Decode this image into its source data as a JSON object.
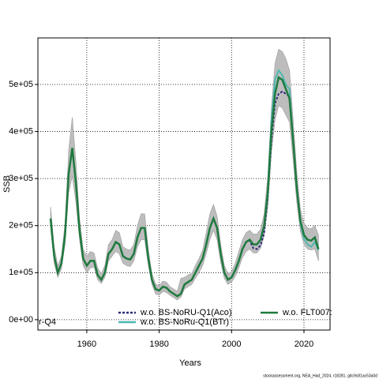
{
  "chart_data": {
    "type": "line",
    "xlabel": "Years",
    "ylabel": "SSB",
    "footer": "stockassessment.org, NEA_Had_2024, r18281, gitc9c81ac53a0d",
    "legend_extra": "r-Q4",
    "legend": "bottom",
    "grid": true,
    "xlim": [
      1946.5,
      2027.2
    ],
    "xticks": [
      1960,
      1980,
      2000,
      2020
    ],
    "ylim": [
      -22000,
      599000
    ],
    "yticks": [
      {
        "value": 0,
        "label": "0e+00"
      },
      {
        "value": 100000,
        "label": "1e+05"
      },
      {
        "value": 200000,
        "label": "2e+05"
      },
      {
        "value": 300000,
        "label": "3e+05"
      },
      {
        "value": 400000,
        "label": "4e+05"
      },
      {
        "value": 500000,
        "label": "5e+05"
      }
    ],
    "x": [
      1950,
      1951,
      1952,
      1953,
      1954,
      1955,
      1956,
      1957,
      1958,
      1959,
      1960,
      1961,
      1962,
      1963,
      1964,
      1965,
      1966,
      1967,
      1968,
      1969,
      1970,
      1971,
      1972,
      1973,
      1974,
      1975,
      1976,
      1977,
      1978,
      1979,
      1980,
      1981,
      1982,
      1983,
      1984,
      1985,
      1986,
      1987,
      1988,
      1989,
      1990,
      1991,
      1992,
      1993,
      1994,
      1995,
      1996,
      1997,
      1998,
      1999,
      2000,
      2001,
      2002,
      2003,
      2004,
      2005,
      2006,
      2007,
      2008,
      2009,
      2010,
      2011,
      2012,
      2013,
      2014,
      2015,
      2016,
      2017,
      2018,
      2019,
      2020,
      2021,
      2022,
      2023,
      2024
    ],
    "band": {
      "color": "#bdbdbd",
      "lower": [
        195000,
        120000,
        90000,
        108000,
        160000,
        270000,
        305000,
        250000,
        170000,
        115000,
        100000,
        110000,
        112000,
        85000,
        77000,
        90000,
        125000,
        135000,
        145000,
        140000,
        120000,
        115000,
        113000,
        125000,
        155000,
        170000,
        170000,
        115000,
        75000,
        55000,
        52000,
        60000,
        58000,
        52000,
        47000,
        42000,
        48000,
        65000,
        70000,
        75000,
        88000,
        100000,
        115000,
        140000,
        170000,
        190000,
        170000,
        122000,
        88000,
        75000,
        80000,
        92000,
        110000,
        132000,
        145000,
        150000,
        142000,
        142000,
        152000,
        178000,
        240000,
        355000,
        425000,
        455000,
        450000,
        435000,
        420000,
        340000,
        250000,
        188000,
        160000,
        150000,
        148000,
        150000,
        125000
      ],
      "upper": [
        240000,
        155000,
        115000,
        135000,
        205000,
        360000,
        430000,
        335000,
        215000,
        150000,
        135000,
        145000,
        142000,
        110000,
        98000,
        115000,
        160000,
        170000,
        190000,
        185000,
        155000,
        150000,
        148000,
        160000,
        200000,
        225000,
        225000,
        150000,
        98000,
        76000,
        72000,
        82000,
        80000,
        70000,
        65000,
        60000,
        88000,
        90000,
        95000,
        98000,
        115000,
        130000,
        148000,
        185000,
        225000,
        245000,
        220000,
        160000,
        115000,
        98000,
        102000,
        120000,
        145000,
        170000,
        185000,
        190000,
        182000,
        182000,
        192000,
        225000,
        305000,
        450000,
        545000,
        575000,
        570000,
        555000,
        530000,
        425000,
        315000,
        235000,
        205000,
        195000,
        193000,
        200000,
        180000
      ]
    },
    "series": [
      {
        "name": "w.o. BS-NoRU-Q1(Aco)",
        "color": "#2b2a7a",
        "dash": "3,2",
        "values": [
          215000,
          135000,
          100000,
          120000,
          180000,
          310000,
          365000,
          290000,
          190000,
          130000,
          115000,
          125000,
          125000,
          95000,
          85000,
          100000,
          140000,
          150000,
          165000,
          160000,
          135000,
          130000,
          128000,
          140000,
          175000,
          195000,
          195000,
          130000,
          85000,
          65000,
          62000,
          70000,
          68000,
          60000,
          55000,
          50000,
          55000,
          75000,
          80000,
          85000,
          100000,
          115000,
          130000,
          160000,
          195000,
          215000,
          195000,
          140000,
          100000,
          85000,
          90000,
          105000,
          125000,
          150000,
          165000,
          168000,
          152000,
          150000,
          158000,
          185000,
          260000,
          380000,
          460000,
          480000,
          485000,
          480000,
          475000,
          380000,
          280000,
          210000,
          180000,
          170000,
          168000,
          175000,
          150000
        ]
      },
      {
        "name": "w.o. BS-NoRu-Q1(BTr)",
        "color": "#4fb8b0",
        "dash": "none",
        "values": [
          215000,
          135000,
          100000,
          120000,
          180000,
          310000,
          365000,
          290000,
          190000,
          130000,
          115000,
          125000,
          125000,
          95000,
          85000,
          100000,
          140000,
          150000,
          165000,
          160000,
          135000,
          130000,
          128000,
          140000,
          175000,
          195000,
          195000,
          130000,
          85000,
          65000,
          62000,
          70000,
          68000,
          60000,
          55000,
          50000,
          55000,
          75000,
          80000,
          85000,
          100000,
          115000,
          130000,
          160000,
          195000,
          215000,
          195000,
          140000,
          100000,
          85000,
          90000,
          105000,
          125000,
          150000,
          165000,
          170000,
          160000,
          160000,
          170000,
          200000,
          275000,
          420000,
          510000,
          530000,
          520000,
          500000,
          490000,
          385000,
          280000,
          205000,
          172000,
          160000,
          155000,
          165000,
          148000
        ]
      },
      {
        "name": "w.o. FLT007:",
        "color": "#1f7a3f",
        "dash": "none",
        "values": [
          215000,
          135000,
          100000,
          120000,
          180000,
          310000,
          365000,
          290000,
          190000,
          130000,
          115000,
          125000,
          125000,
          95000,
          85000,
          100000,
          140000,
          150000,
          165000,
          160000,
          135000,
          130000,
          128000,
          140000,
          175000,
          195000,
          195000,
          130000,
          85000,
          65000,
          62000,
          70000,
          68000,
          60000,
          55000,
          50000,
          55000,
          75000,
          80000,
          85000,
          100000,
          115000,
          130000,
          160000,
          195000,
          215000,
          195000,
          140000,
          100000,
          85000,
          90000,
          105000,
          125000,
          150000,
          165000,
          170000,
          160000,
          160000,
          170000,
          200000,
          270000,
          400000,
          480000,
          515000,
          510000,
          490000,
          470000,
          380000,
          280000,
          210000,
          180000,
          170000,
          168000,
          175000,
          150000
        ]
      }
    ]
  }
}
